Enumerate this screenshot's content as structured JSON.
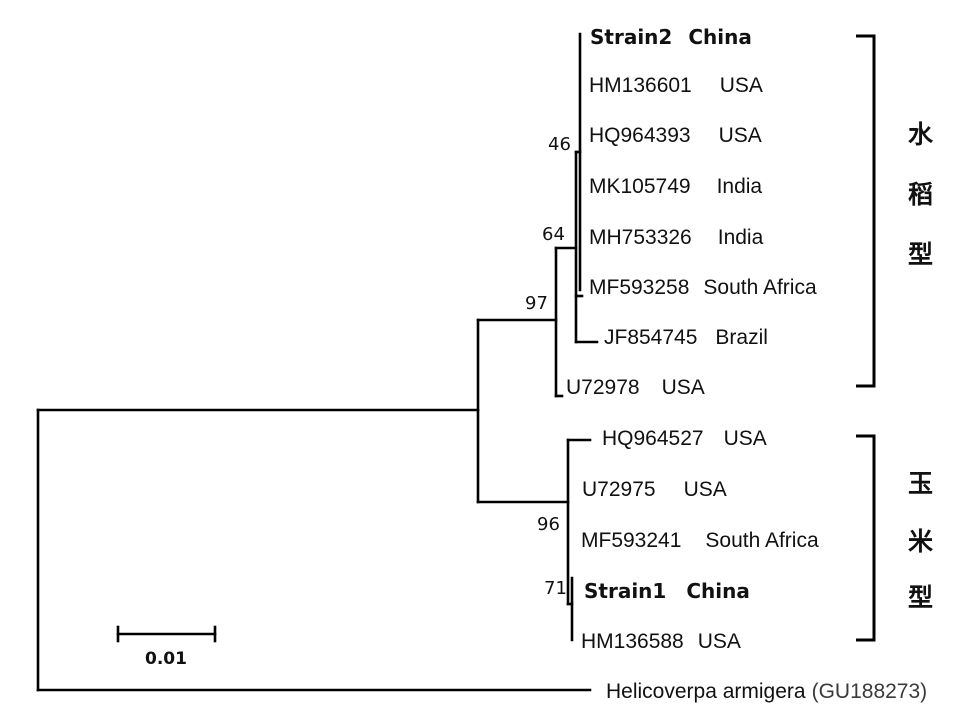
{
  "figure": {
    "leaves": [
      {
        "id": "strain2",
        "accession": "Strain2",
        "country": "China",
        "bold": true
      },
      {
        "id": "hm136601",
        "accession": "HM136601",
        "country": "USA",
        "bold": false
      },
      {
        "id": "hq964393",
        "accession": "HQ964393",
        "country": "USA",
        "bold": false
      },
      {
        "id": "mk105749",
        "accession": "MK105749",
        "country": "India",
        "bold": false
      },
      {
        "id": "mh753326",
        "accession": "MH753326",
        "country": "India",
        "bold": false
      },
      {
        "id": "mf593258",
        "accession": "MF593258",
        "country": "South Africa",
        "bold": false
      },
      {
        "id": "jf854745",
        "accession": "JF854745",
        "country": "Brazil",
        "bold": false
      },
      {
        "id": "u72978",
        "accession": "U72978",
        "country": "USA",
        "bold": false
      },
      {
        "id": "hq964527",
        "accession": "HQ964527",
        "country": "USA",
        "bold": false
      },
      {
        "id": "u72975",
        "accession": "U72975",
        "country": "USA",
        "bold": false
      },
      {
        "id": "mf593241",
        "accession": "MF593241",
        "country": "South Africa",
        "bold": false
      },
      {
        "id": "strain1",
        "accession": "Strain1",
        "country": "China",
        "bold": true
      },
      {
        "id": "hm136588",
        "accession": "HM136588",
        "country": "USA",
        "bold": false
      }
    ],
    "outgroup": {
      "species": "Helicoverpa armigera",
      "accession": "(GU188273)"
    },
    "bootstrap": [
      "46",
      "64",
      "97",
      "96",
      "71"
    ],
    "groups": [
      {
        "id": "rice",
        "label": "水稻型",
        "chars": [
          "水",
          "稻",
          "型"
        ]
      },
      {
        "id": "corn",
        "label": "玉米型",
        "chars": [
          "玉",
          "米",
          "型"
        ]
      }
    ],
    "scale_bar": {
      "label": "0.01",
      "value": 0.01
    }
  }
}
